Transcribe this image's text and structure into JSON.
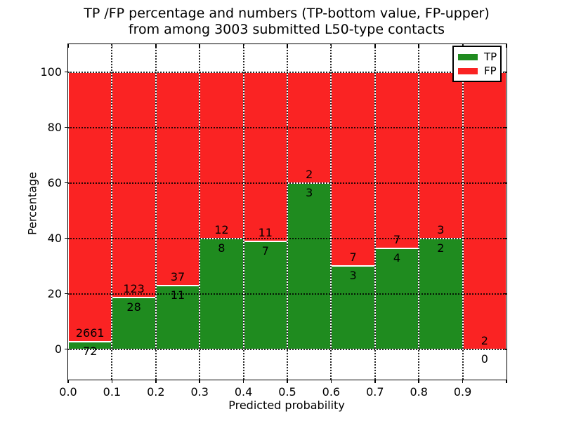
{
  "chart_data": {
    "type": "bar",
    "stacked": true,
    "title_line1": "TP /FP percentage and numbers (TP-bottom value, FP-upper)",
    "title_line2": "from among 3003 submitted L50-type contacts",
    "xlabel": "Predicted probability",
    "ylabel": "Percentage",
    "xlim": [
      0.0,
      1.0
    ],
    "ylim": [
      -11,
      110
    ],
    "xtick_labels": [
      "0.0",
      "0.1",
      "0.2",
      "0.3",
      "0.4",
      "0.5",
      "0.6",
      "0.7",
      "0.8",
      "0.9"
    ],
    "ytick_values": [
      0,
      20,
      40,
      60,
      80,
      100
    ],
    "grid": "dotted",
    "legend_position": "upper right",
    "legend": [
      {
        "label": "TP",
        "color": "#1f8b1f"
      },
      {
        "label": "FP",
        "color": "#fa2323"
      }
    ],
    "colors": {
      "tp": "#1f8b1f",
      "fp": "#fa2323"
    },
    "bins": [
      {
        "range": [
          0.0,
          0.1
        ],
        "tp": 72,
        "fp": 2661,
        "tp_pct": 2.6
      },
      {
        "range": [
          0.1,
          0.2
        ],
        "tp": 28,
        "fp": 123,
        "tp_pct": 18.5
      },
      {
        "range": [
          0.2,
          0.3
        ],
        "tp": 11,
        "fp": 37,
        "tp_pct": 22.9
      },
      {
        "range": [
          0.3,
          0.4
        ],
        "tp": 8,
        "fp": 12,
        "tp_pct": 40.0
      },
      {
        "range": [
          0.4,
          0.5
        ],
        "tp": 7,
        "fp": 11,
        "tp_pct": 38.9
      },
      {
        "range": [
          0.5,
          0.6
        ],
        "tp": 3,
        "fp": 2,
        "tp_pct": 60.0
      },
      {
        "range": [
          0.6,
          0.7
        ],
        "tp": 3,
        "fp": 7,
        "tp_pct": 30.0
      },
      {
        "range": [
          0.7,
          0.8
        ],
        "tp": 4,
        "fp": 7,
        "tp_pct": 36.4
      },
      {
        "range": [
          0.8,
          0.9
        ],
        "tp": 2,
        "fp": 3,
        "tp_pct": 40.0
      },
      {
        "range": [
          0.9,
          1.0
        ],
        "tp": 0,
        "fp": 2,
        "tp_pct": 0.0
      }
    ]
  }
}
